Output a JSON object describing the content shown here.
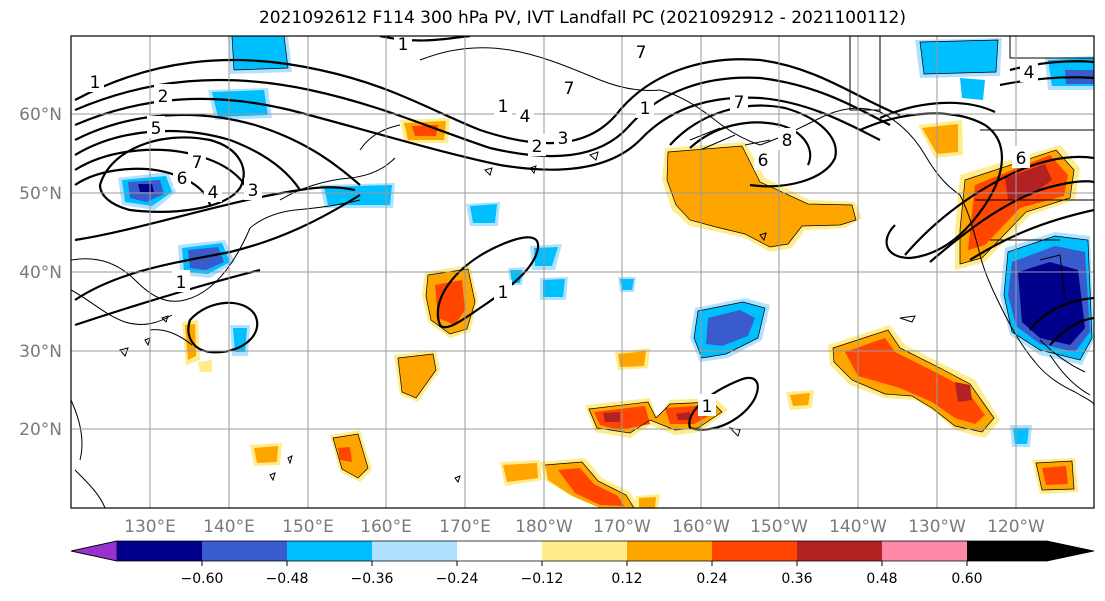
{
  "title": "2021092612 F114 300 hPa PV, IVT Landfall PC (2021092912 - 2021100112)",
  "map": {
    "lon_ticks": [
      "130°E",
      "140°E",
      "150°E",
      "160°E",
      "170°E",
      "180°W",
      "170°W",
      "160°W",
      "150°W",
      "140°W",
      "130°W",
      "120°W"
    ],
    "lat_ticks": [
      "60°N",
      "50°N",
      "40°N",
      "30°N",
      "20°N"
    ],
    "contour_labels": [
      "1",
      "2",
      "5",
      "6",
      "7",
      "4",
      "3",
      "1",
      "1",
      "1",
      "1",
      "4",
      "3",
      "2",
      "1",
      "7",
      "7",
      "7",
      "8",
      "6",
      "6",
      "4",
      "1"
    ]
  },
  "colorbar": {
    "ticks": [
      "−0.60",
      "−0.48",
      "−0.36",
      "−0.24",
      "−0.12",
      "0.12",
      "0.24",
      "0.36",
      "0.48",
      "0.60"
    ],
    "colors": [
      "#9932cc",
      "#00008b",
      "#3a5bcc",
      "#00bfff",
      "#b0e2ff",
      "#ffffff",
      "#ffec8b",
      "#ffa500",
      "#ff4500",
      "#b22222",
      "#ff88a8"
    ]
  }
}
